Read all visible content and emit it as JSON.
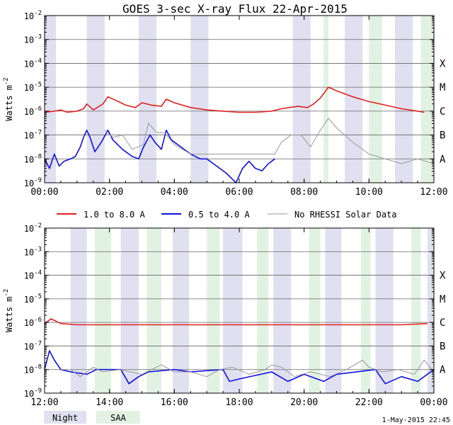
{
  "title": "GOES 3-sec X-ray Flux   22-Apr-2015",
  "footer_date": "1-May-2015 22:45",
  "colors": {
    "long": "#e02020",
    "short": "#1010e0",
    "norhessi": "#999999",
    "night": "#e0e0f0",
    "saa": "#e2f2e2",
    "grid": "#666666"
  },
  "legend": {
    "long": "1.0 to 8.0 A",
    "short": "0.5 to 4.0 A",
    "norhessi": "No RHESSI Solar Data",
    "night": "Night",
    "saa": "SAA"
  },
  "chart_data": [
    {
      "type": "line",
      "panel": "top",
      "ylabel": "Watts m-2",
      "yscale": "log",
      "ylim_exp": [
        -9,
        -2
      ],
      "xlim_hours": [
        0,
        12
      ],
      "x_ticks": [
        "00:00",
        "02:00",
        "04:00",
        "06:00",
        "08:00",
        "10:00",
        "12:00"
      ],
      "y_ticks": [
        "10^-9",
        "10^-8",
        "10^-7",
        "10^-6",
        "10^-5",
        "10^-4",
        "10^-3",
        "10^-2"
      ],
      "class_labels": [
        "A",
        "B",
        "C",
        "M",
        "X"
      ],
      "night_bands": [
        [
          0,
          0.35
        ],
        [
          1.3,
          1.85
        ],
        [
          2.9,
          3.45
        ],
        [
          4.5,
          5.05
        ],
        [
          7.65,
          8.2
        ],
        [
          9.25,
          9.8
        ],
        [
          10.8,
          11.35
        ]
      ],
      "saa_bands": [
        [
          8.6,
          8.75
        ],
        [
          10.0,
          10.4
        ],
        [
          11.6,
          12.0
        ]
      ],
      "series": [
        {
          "name": "1.0 to 8.0 A",
          "log_flux": [
            [
              0.0,
              -6.05
            ],
            [
              0.3,
              -6.0
            ],
            [
              0.5,
              -5.95
            ],
            [
              0.7,
              -6.05
            ],
            [
              1.0,
              -6.0
            ],
            [
              1.2,
              -5.9
            ],
            [
              1.3,
              -5.7
            ],
            [
              1.5,
              -5.95
            ],
            [
              1.8,
              -5.7
            ],
            [
              1.95,
              -5.4
            ],
            [
              2.2,
              -5.55
            ],
            [
              2.5,
              -5.75
            ],
            [
              2.8,
              -5.85
            ],
            [
              3.0,
              -5.65
            ],
            [
              3.3,
              -5.75
            ],
            [
              3.6,
              -5.8
            ],
            [
              3.75,
              -5.5
            ],
            [
              4.0,
              -5.65
            ],
            [
              4.5,
              -5.85
            ],
            [
              5.0,
              -5.95
            ],
            [
              5.5,
              -6.0
            ],
            [
              6.0,
              -6.05
            ],
            [
              6.5,
              -6.05
            ],
            [
              7.0,
              -6.0
            ],
            [
              7.3,
              -5.9
            ],
            [
              7.8,
              -5.8
            ],
            [
              8.1,
              -5.85
            ],
            [
              8.3,
              -5.7
            ],
            [
              8.5,
              -5.45
            ],
            [
              8.75,
              -5.0
            ],
            [
              9.0,
              -5.15
            ],
            [
              9.5,
              -5.4
            ],
            [
              10.0,
              -5.6
            ],
            [
              10.5,
              -5.75
            ],
            [
              11.0,
              -5.9
            ],
            [
              11.5,
              -6.0
            ],
            [
              11.7,
              -6.05
            ]
          ]
        },
        {
          "name": "0.5 to 4.0 A",
          "log_flux": [
            [
              0.0,
              -8.0
            ],
            [
              0.15,
              -8.4
            ],
            [
              0.3,
              -7.8
            ],
            [
              0.45,
              -8.3
            ],
            [
              0.6,
              -8.1
            ],
            [
              0.8,
              -8.0
            ],
            [
              0.95,
              -7.9
            ],
            [
              1.1,
              -7.5
            ],
            [
              1.2,
              -7.1
            ],
            [
              1.3,
              -6.8
            ],
            [
              1.4,
              -7.1
            ],
            [
              1.55,
              -7.7
            ],
            [
              1.75,
              -7.3
            ],
            [
              1.95,
              -6.8
            ],
            [
              2.1,
              -7.2
            ],
            [
              2.4,
              -7.6
            ],
            [
              2.7,
              -7.9
            ],
            [
              2.9,
              -8.0
            ],
            [
              3.05,
              -7.5
            ],
            [
              3.25,
              -7.0
            ],
            [
              3.4,
              -7.3
            ],
            [
              3.6,
              -7.6
            ],
            [
              3.75,
              -6.8
            ],
            [
              3.9,
              -7.2
            ],
            [
              4.2,
              -7.5
            ],
            [
              4.5,
              -7.8
            ],
            [
              4.8,
              -8.0
            ],
            [
              5.0,
              -8.0
            ],
            [
              5.3,
              -8.3
            ],
            [
              5.6,
              -8.6
            ],
            [
              5.9,
              -9.0
            ],
            [
              6.1,
              -8.4
            ],
            [
              6.3,
              -8.1
            ],
            [
              6.5,
              -8.4
            ],
            [
              6.7,
              -8.5
            ],
            [
              6.9,
              -8.2
            ],
            [
              7.1,
              -8.0
            ]
          ]
        },
        {
          "name": "No RHESSI Solar Data",
          "log_flux": [
            [
              1.85,
              -6.8
            ],
            [
              2.1,
              -7.1
            ],
            [
              2.4,
              -7.0
            ],
            [
              2.7,
              -7.6
            ],
            [
              3.05,
              -7.4
            ],
            [
              3.2,
              -6.5
            ],
            [
              3.45,
              -6.9
            ],
            [
              3.7,
              -6.9
            ],
            [
              4.0,
              -7.4
            ],
            [
              4.5,
              -7.8
            ],
            [
              7.1,
              -7.8
            ],
            [
              7.3,
              -7.3
            ],
            [
              7.6,
              -7.0
            ],
            [
              7.9,
              -7.0
            ],
            [
              8.2,
              -7.5
            ],
            [
              8.5,
              -6.8
            ],
            [
              8.75,
              -6.3
            ],
            [
              9.0,
              -6.7
            ],
            [
              9.5,
              -7.3
            ],
            [
              10.0,
              -7.8
            ],
            [
              10.5,
              -8.0
            ],
            [
              11.0,
              -8.2
            ],
            [
              11.5,
              -8.0
            ],
            [
              12.0,
              -8.2
            ]
          ]
        }
      ]
    },
    {
      "type": "line",
      "panel": "bottom",
      "ylabel": "Watts m-2",
      "yscale": "log",
      "ylim_exp": [
        -9,
        -2
      ],
      "xlim_hours": [
        12,
        24
      ],
      "x_ticks": [
        "12:00",
        "14:00",
        "16:00",
        "18:00",
        "20:00",
        "22:00",
        "00:00"
      ],
      "y_ticks": [
        "10^-9",
        "10^-8",
        "10^-7",
        "10^-6",
        "10^-5",
        "10^-4",
        "10^-3",
        "10^-2"
      ],
      "class_labels": [
        "A",
        "B",
        "C",
        "M",
        "X"
      ],
      "night_bands": [
        [
          12.8,
          13.3
        ],
        [
          14.35,
          14.9
        ],
        [
          15.95,
          16.45
        ],
        [
          17.5,
          18.1
        ],
        [
          19.05,
          19.6
        ],
        [
          20.65,
          21.15
        ],
        [
          22.2,
          22.75
        ],
        [
          23.8,
          24.0
        ]
      ],
      "saa_bands": [
        [
          13.55,
          14.05
        ],
        [
          15.15,
          15.6
        ],
        [
          17.0,
          17.4
        ],
        [
          18.55,
          18.9
        ],
        [
          20.15,
          20.5
        ],
        [
          21.75,
          22.05
        ],
        [
          23.3,
          23.6
        ]
      ],
      "series": [
        {
          "name": "1.0 to 8.0 A",
          "log_flux": [
            [
              12.0,
              -6.05
            ],
            [
              12.2,
              -5.85
            ],
            [
              12.5,
              -6.05
            ],
            [
              13.0,
              -6.1
            ],
            [
              14.0,
              -6.1
            ],
            [
              15.0,
              -6.1
            ],
            [
              16.0,
              -6.1
            ],
            [
              17.0,
              -6.1
            ],
            [
              18.0,
              -6.1
            ],
            [
              19.0,
              -6.1
            ],
            [
              20.0,
              -6.1
            ],
            [
              21.0,
              -6.1
            ],
            [
              22.0,
              -6.1
            ],
            [
              23.0,
              -6.1
            ],
            [
              23.8,
              -6.05
            ]
          ]
        },
        {
          "name": "0.5 to 4.0 A",
          "log_flux": [
            [
              12.0,
              -8.0
            ],
            [
              12.15,
              -7.2
            ],
            [
              12.3,
              -7.6
            ],
            [
              12.5,
              -8.0
            ],
            [
              12.8,
              -8.1
            ],
            [
              13.3,
              -8.2
            ],
            [
              13.6,
              -8.0
            ],
            [
              14.0,
              -8.0
            ],
            [
              14.35,
              -8.0
            ],
            [
              14.6,
              -8.6
            ],
            [
              14.9,
              -8.3
            ],
            [
              15.2,
              -8.1
            ],
            [
              16.0,
              -8.0
            ],
            [
              16.5,
              -8.1
            ],
            [
              17.5,
              -8.0
            ],
            [
              17.7,
              -8.5
            ],
            [
              18.0,
              -8.4
            ],
            [
              19.0,
              -8.1
            ],
            [
              19.5,
              -8.5
            ],
            [
              20.0,
              -8.2
            ],
            [
              20.6,
              -8.5
            ],
            [
              21.0,
              -8.2
            ],
            [
              22.2,
              -8.0
            ],
            [
              22.5,
              -8.6
            ],
            [
              23.0,
              -8.3
            ],
            [
              23.5,
              -8.5
            ],
            [
              24.0,
              -8.0
            ]
          ]
        },
        {
          "name": "No RHESSI Solar Data",
          "log_flux": [
            [
              12.5,
              -8.0
            ],
            [
              12.8,
              -8.0
            ],
            [
              13.1,
              -8.3
            ],
            [
              13.5,
              -7.9
            ],
            [
              13.8,
              -8.1
            ],
            [
              14.3,
              -8.0
            ],
            [
              15.0,
              -8.2
            ],
            [
              15.6,
              -7.8
            ],
            [
              16.0,
              -8.1
            ],
            [
              16.5,
              -8.1
            ],
            [
              17.0,
              -8.3
            ],
            [
              17.4,
              -8.0
            ],
            [
              17.8,
              -7.9
            ],
            [
              18.3,
              -8.2
            ],
            [
              18.8,
              -8.0
            ],
            [
              19.0,
              -7.8
            ],
            [
              19.3,
              -7.9
            ],
            [
              19.7,
              -8.3
            ],
            [
              20.2,
              -8.1
            ],
            [
              20.8,
              -8.3
            ],
            [
              21.3,
              -8.0
            ],
            [
              21.8,
              -7.6
            ],
            [
              22.0,
              -7.9
            ],
            [
              22.4,
              -8.1
            ],
            [
              22.9,
              -8.0
            ],
            [
              23.4,
              -8.2
            ],
            [
              23.7,
              -7.6
            ],
            [
              24.0,
              -8.1
            ]
          ]
        }
      ]
    }
  ]
}
